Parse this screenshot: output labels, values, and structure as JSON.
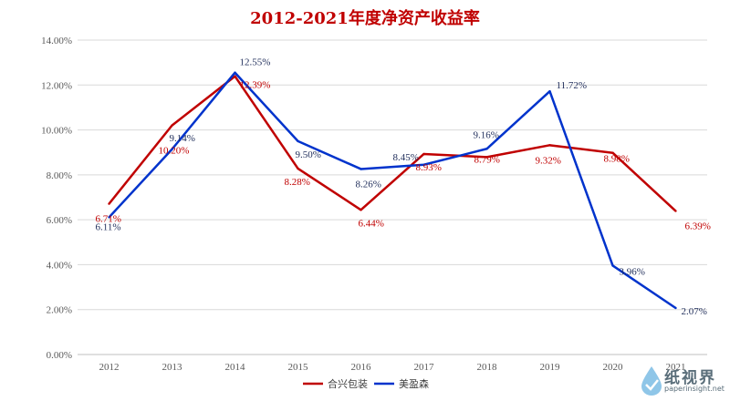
{
  "chart_data": {
    "type": "line",
    "title": "2012-2021年度净资产收益率",
    "categories": [
      "2012",
      "2013",
      "2014",
      "2015",
      "2016",
      "2017",
      "2018",
      "2019",
      "2020",
      "2021"
    ],
    "ylim": [
      0,
      14
    ],
    "yticks": [
      "0.00%",
      "2.00%",
      "4.00%",
      "6.00%",
      "8.00%",
      "10.00%",
      "12.00%",
      "14.00%"
    ],
    "grid": true,
    "legend_position": "bottom",
    "series": [
      {
        "name": "合兴包装",
        "color": "#c00000",
        "values": [
          6.71,
          10.2,
          12.39,
          8.28,
          6.44,
          8.93,
          8.79,
          9.32,
          8.98,
          6.39
        ],
        "labels": [
          "6.71%",
          "10.20%",
          "12.39%",
          "8.28%",
          "6.44%",
          "8.93%",
          "8.79%",
          "9.32%",
          "8.98%",
          "6.39%"
        ]
      },
      {
        "name": "美盈森",
        "color": "#0033cc",
        "values": [
          6.11,
          9.14,
          12.55,
          9.5,
          8.26,
          8.45,
          9.16,
          11.72,
          3.96,
          2.07
        ],
        "labels": [
          "6.11%",
          "9.14%",
          "12.55%",
          "9.50%",
          "8.26%",
          "8.45%",
          "9.16%",
          "11.72%",
          "3.96%",
          "2.07%"
        ]
      }
    ]
  },
  "watermark": {
    "text": "纸视界",
    "sub": "paperinsight.net"
  }
}
